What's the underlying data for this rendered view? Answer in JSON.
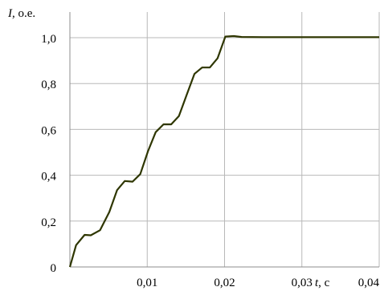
{
  "chart_data": {
    "type": "line",
    "title": "",
    "ylabel": {
      "var": "I",
      "unit": ", о.е."
    },
    "xlabel": {
      "var": "t",
      "unit": ", с"
    },
    "xlim": [
      0,
      0.04
    ],
    "ylim": [
      0,
      1.0
    ],
    "x_ticks": [
      {
        "value": 0.01,
        "label": "0,01"
      },
      {
        "value": 0.02,
        "label": "0,02"
      },
      {
        "value": 0.03,
        "label": "0,03"
      },
      {
        "value": 0.04,
        "label": "0,04"
      }
    ],
    "y_ticks": [
      {
        "value": 0,
        "label": "0"
      },
      {
        "value": 0.2,
        "label": "0,2"
      },
      {
        "value": 0.4,
        "label": "0,4"
      },
      {
        "value": 0.6,
        "label": "0,6"
      },
      {
        "value": 0.8,
        "label": "0,8"
      },
      {
        "value": 1.0,
        "label": "1,0"
      }
    ],
    "grid": true,
    "line_color": "#2e3600",
    "grid_color": "#b8b8b8",
    "series": [
      {
        "x": [
          0,
          0.0008,
          0.0019,
          0.0027,
          0.0039,
          0.0051,
          0.0061,
          0.0071,
          0.0081,
          0.0091,
          0.0101,
          0.0111,
          0.0121,
          0.0131,
          0.0141,
          0.0151,
          0.0161,
          0.0171,
          0.0181,
          0.0191,
          0.0201,
          0.0212,
          0.0222,
          0.025,
          0.03,
          0.035,
          0.04
        ],
        "y": [
          0,
          0.095,
          0.14,
          0.138,
          0.16,
          0.24,
          0.335,
          0.375,
          0.372,
          0.405,
          0.505,
          0.588,
          0.622,
          0.622,
          0.658,
          0.75,
          0.842,
          0.87,
          0.87,
          0.91,
          1.005,
          1.007,
          1.003,
          1.002,
          1.002,
          1.002,
          1.002
        ]
      }
    ]
  }
}
